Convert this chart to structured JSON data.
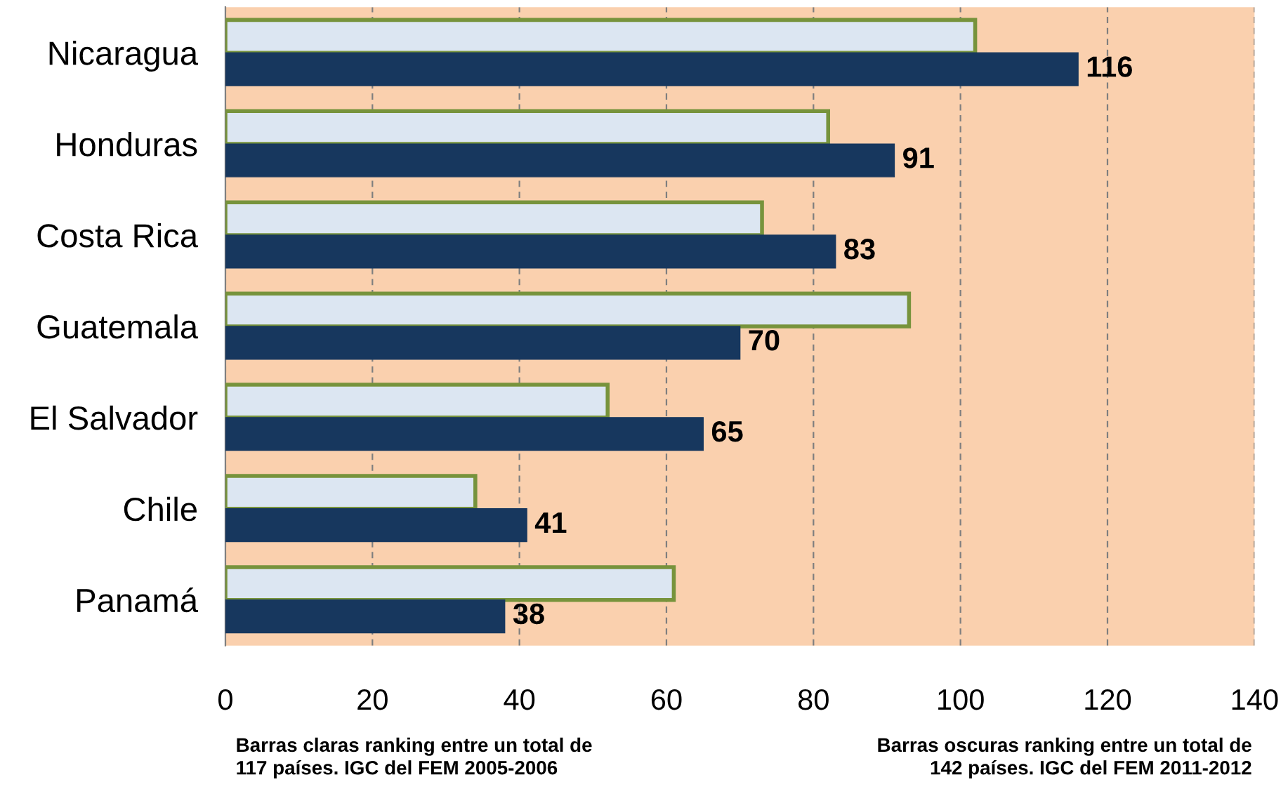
{
  "chart_data": {
    "type": "bar",
    "orientation": "horizontal",
    "categories": [
      "Nicaragua",
      "Honduras",
      "Costa Rica",
      "Guatemala",
      "El Salvador",
      "Chile",
      "Panamá"
    ],
    "series": [
      {
        "color": "#dce6f2",
        "values": [
          102,
          82,
          73,
          93,
          52,
          34,
          61
        ]
      },
      {
        "color": "#17375e",
        "values": [
          116,
          91,
          83,
          70,
          65,
          41,
          38
        ],
        "value_labels": [
          "116",
          "91",
          "83",
          "70",
          "65",
          "41",
          "38"
        ]
      }
    ],
    "xlim": [
      0,
      140
    ],
    "xticks": [
      0,
      20,
      40,
      60,
      80,
      100,
      120,
      140
    ],
    "grid": "x",
    "legend": false,
    "annotations": [
      "Barras claras ranking entre un total de\n117 países. IGC del FEM 2005-2006",
      "Barras oscuras ranking entre un total de\n142 países. IGC del FEM 2011-2012"
    ]
  }
}
